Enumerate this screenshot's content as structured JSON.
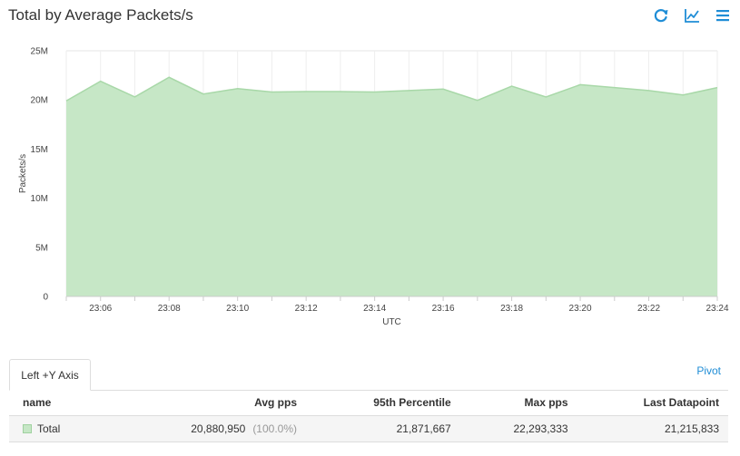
{
  "title": "Total by Average Packets/s",
  "toolbar": {
    "refresh_icon": "refresh-icon",
    "chart_type_icon": "line-chart-icon",
    "menu_icon": "hamburger-menu-icon",
    "accent_color": "#1f8dd6"
  },
  "chart_data": {
    "type": "area",
    "title": "",
    "xlabel": "UTC",
    "ylabel": "Packets/s",
    "x": [
      "23:05",
      "23:06",
      "23:07",
      "23:08",
      "23:09",
      "23:10",
      "23:11",
      "23:12",
      "23:13",
      "23:14",
      "23:15",
      "23:16",
      "23:17",
      "23:18",
      "23:19",
      "23:20",
      "23:21",
      "23:22",
      "23:23",
      "23:24"
    ],
    "x_tick_labels": [
      "23:06",
      "23:08",
      "23:10",
      "23:12",
      "23:14",
      "23:16",
      "23:18",
      "23:20",
      "23:22",
      "23:24"
    ],
    "series": [
      {
        "name": "Total",
        "color": "#c6e7c6",
        "line_color": "#a8d8a8",
        "values": [
          19900000,
          21900000,
          20300000,
          22300000,
          20600000,
          21150000,
          20800000,
          20850000,
          20850000,
          20800000,
          20950000,
          21100000,
          19950000,
          21400000,
          20300000,
          21550000,
          21250000,
          20950000,
          20500000,
          21250000
        ]
      }
    ],
    "y_tick_labels": [
      "0",
      "5M",
      "10M",
      "15M",
      "20M",
      "25M"
    ],
    "y_ticks": [
      0,
      5000000,
      10000000,
      15000000,
      20000000,
      25000000
    ],
    "ylim": [
      0,
      25000000
    ],
    "grid": true,
    "legend": "none"
  },
  "tabs": [
    {
      "label": "Left +Y Axis"
    }
  ],
  "pivot_label": "Pivot",
  "table": {
    "headers": {
      "name": "name",
      "avg": "Avg pps",
      "p95": "95th Percentile",
      "max": "Max pps",
      "last": "Last Datapoint"
    },
    "rows": [
      {
        "name": "Total",
        "swatch_color": "#c6e7c6",
        "avg": "20,880,950",
        "pct": "(100.0%)",
        "p95": "21,871,667",
        "max": "22,293,333",
        "last": "21,215,833"
      }
    ]
  }
}
